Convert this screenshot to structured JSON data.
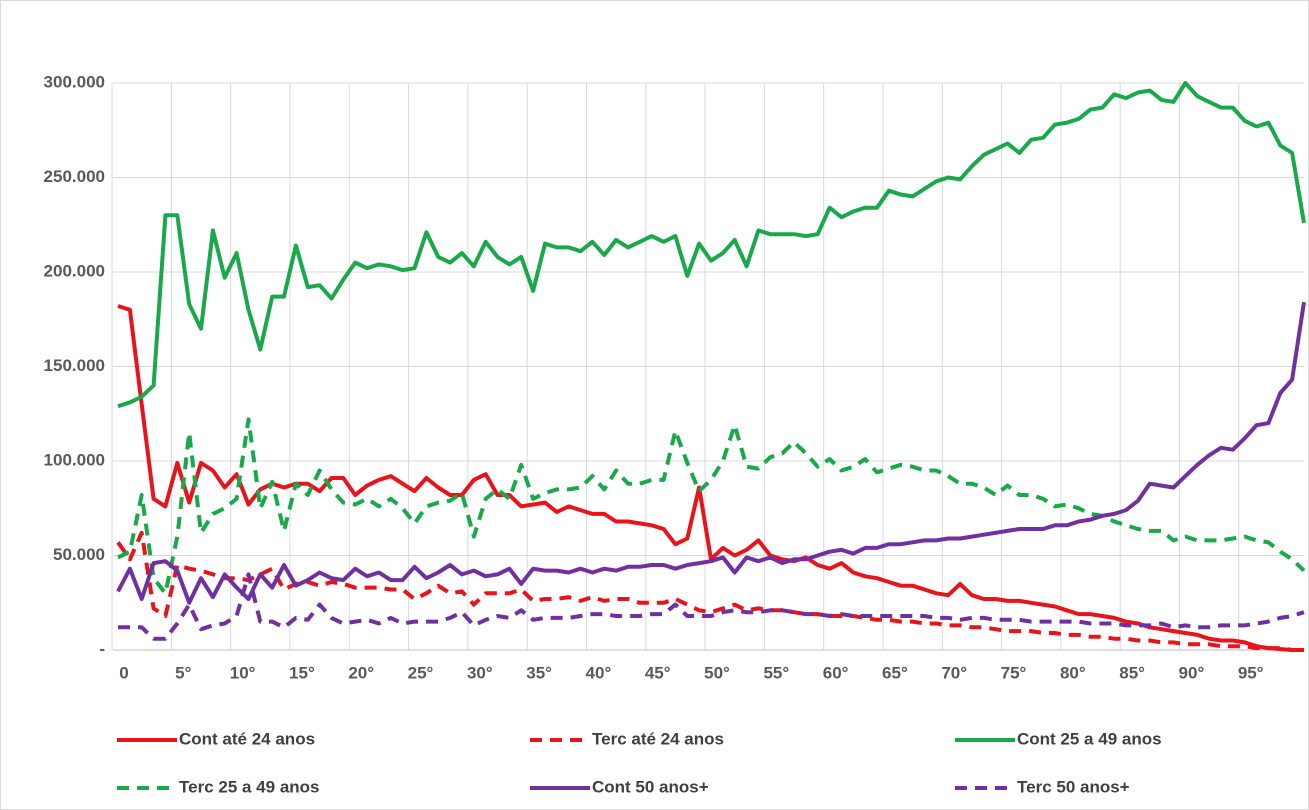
{
  "chart_data": {
    "type": "line",
    "categories": [
      "0",
      null,
      null,
      null,
      null,
      "5°",
      null,
      null,
      null,
      null,
      "10°",
      null,
      null,
      null,
      null,
      "15°",
      null,
      null,
      null,
      null,
      "20°",
      null,
      null,
      null,
      null,
      "25°",
      null,
      null,
      null,
      null,
      "30°",
      null,
      null,
      null,
      null,
      "35°",
      null,
      null,
      null,
      null,
      "40°",
      null,
      null,
      null,
      null,
      "45°",
      null,
      null,
      null,
      null,
      "50°",
      null,
      null,
      null,
      null,
      "55°",
      null,
      null,
      null,
      null,
      "60°",
      null,
      null,
      null,
      null,
      "65°",
      null,
      null,
      null,
      null,
      "70°",
      null,
      null,
      null,
      null,
      "75°",
      null,
      null,
      null,
      null,
      "80°",
      null,
      null,
      null,
      null,
      "85°",
      null,
      null,
      null,
      null,
      "90°",
      null,
      null,
      null,
      null,
      "95°",
      null,
      null,
      null,
      null,
      null
    ],
    "ylim": [
      0,
      300000
    ],
    "yticks": [
      {
        "value": 0,
        "label": "-"
      },
      {
        "value": 50000,
        "label": "50.000"
      },
      {
        "value": 100000,
        "label": "100.000"
      },
      {
        "value": 150000,
        "label": "150.000"
      },
      {
        "value": 200000,
        "label": "200.000"
      },
      {
        "value": 250000,
        "label": "250.000"
      },
      {
        "value": 300000,
        "label": "300.000"
      }
    ],
    "grid": true,
    "series": [
      {
        "name": "Cont até 24 anos",
        "color": "#e8141b",
        "line_style": "solid",
        "values": [
          182000,
          180000,
          130000,
          80000,
          76000,
          99000,
          78000,
          99000,
          95000,
          86000,
          93000,
          77000,
          85000,
          88000,
          86000,
          88000,
          88000,
          84000,
          91000,
          91000,
          82000,
          87000,
          90000,
          92000,
          88000,
          84000,
          91000,
          86000,
          82000,
          82000,
          90000,
          93000,
          82000,
          82000,
          76000,
          77000,
          78000,
          73000,
          76000,
          74000,
          72000,
          72000,
          68000,
          68000,
          67000,
          66000,
          64000,
          56000,
          59000,
          86000,
          48000,
          54000,
          50000,
          53000,
          58000,
          50000,
          48000,
          47000,
          49000,
          45000,
          43000,
          46000,
          41000,
          39000,
          38000,
          36000,
          34000,
          34000,
          32000,
          30000,
          29000,
          35000,
          29000,
          27000,
          27000,
          26000,
          26000,
          25000,
          24000,
          23000,
          21000,
          19000,
          19000,
          18000,
          17000,
          15000,
          14000,
          12000,
          11000,
          10000,
          9000,
          8000,
          6000,
          5000,
          5000,
          4000,
          2000,
          1000,
          500,
          0,
          0
        ]
      },
      {
        "name": "Terc até 24 anos",
        "color": "#e8141b",
        "line_style": "dashed",
        "values": [
          57000,
          48000,
          62000,
          22000,
          18000,
          45000,
          43000,
          42000,
          40000,
          38000,
          38000,
          37000,
          40000,
          43000,
          32000,
          35000,
          36000,
          34000,
          36000,
          35000,
          33000,
          33000,
          33000,
          32000,
          32000,
          27000,
          30000,
          34000,
          30000,
          31000,
          24000,
          30000,
          30000,
          30000,
          32000,
          26000,
          27000,
          27000,
          28000,
          26000,
          28000,
          26000,
          27000,
          27000,
          25000,
          25000,
          25000,
          27000,
          24000,
          21000,
          20000,
          22000,
          24000,
          21000,
          22000,
          21000,
          21000,
          20000,
          19000,
          19000,
          18000,
          18000,
          18000,
          17000,
          16000,
          16000,
          15000,
          15000,
          14000,
          14000,
          13000,
          13000,
          12000,
          12000,
          11000,
          10000,
          10000,
          10000,
          9000,
          9000,
          8000,
          8000,
          7000,
          7000,
          6000,
          6000,
          5000,
          5000,
          4000,
          4000,
          3000,
          3000,
          3000,
          2000,
          2000,
          2000,
          1000,
          1000,
          1000,
          0,
          0
        ]
      },
      {
        "name": "Cont 25 a 49 anos",
        "color": "#19a84a",
        "line_style": "solid",
        "values": [
          129000,
          131000,
          134000,
          140000,
          230000,
          230000,
          183000,
          170000,
          222000,
          197000,
          210000,
          180000,
          159000,
          187000,
          187000,
          214000,
          192000,
          193000,
          186000,
          196000,
          205000,
          202000,
          204000,
          203000,
          201000,
          202000,
          221000,
          208000,
          205000,
          210000,
          203000,
          216000,
          208000,
          204000,
          208000,
          190000,
          215000,
          213000,
          213000,
          211000,
          216000,
          209000,
          217000,
          213000,
          216000,
          219000,
          216000,
          219000,
          198000,
          215000,
          206000,
          210000,
          217000,
          203000,
          222000,
          220000,
          220000,
          220000,
          219000,
          220000,
          234000,
          229000,
          232000,
          234000,
          234000,
          243000,
          241000,
          240000,
          244000,
          248000,
          250000,
          249000,
          256000,
          262000,
          265000,
          268000,
          263000,
          270000,
          271000,
          278000,
          279000,
          281000,
          286000,
          287000,
          294000,
          292000,
          295000,
          296000,
          291000,
          290000,
          300000,
          293000,
          290000,
          287000,
          287000,
          280000,
          277000,
          279000,
          267000,
          263000,
          226000
        ]
      },
      {
        "name": "Terc 25 a 49 anos",
        "color": "#19a84a",
        "line_style": "dashed",
        "values": [
          49000,
          52000,
          82000,
          38000,
          30000,
          60000,
          115000,
          62000,
          72000,
          75000,
          80000,
          122000,
          75000,
          89000,
          63000,
          88000,
          82000,
          95000,
          85000,
          78000,
          77000,
          80000,
          76000,
          80000,
          75000,
          67000,
          76000,
          78000,
          79000,
          83000,
          60000,
          80000,
          85000,
          80000,
          98000,
          80000,
          83000,
          85000,
          85000,
          86000,
          92000,
          85000,
          95000,
          88000,
          88000,
          90000,
          90000,
          116000,
          99000,
          84000,
          90000,
          100000,
          119000,
          97000,
          96000,
          102000,
          104000,
          110000,
          104000,
          97000,
          101000,
          95000,
          97000,
          101000,
          94000,
          96000,
          98000,
          97000,
          95000,
          95000,
          92000,
          88000,
          88000,
          86000,
          82000,
          87000,
          82000,
          82000,
          80000,
          76000,
          77000,
          75000,
          72000,
          71000,
          68000,
          66000,
          64000,
          63000,
          63000,
          58000,
          60000,
          58000,
          58000,
          58000,
          59000,
          60000,
          58000,
          57000,
          52000,
          48000,
          42000
        ]
      },
      {
        "name": "Cont 50 anos+",
        "color": "#7030a0",
        "line_style": "solid",
        "values": [
          31000,
          43000,
          27000,
          46000,
          47000,
          42000,
          25000,
          38000,
          28000,
          40000,
          33000,
          27000,
          40000,
          33000,
          45000,
          34000,
          37000,
          41000,
          38000,
          37000,
          43000,
          39000,
          41000,
          37000,
          37000,
          44000,
          38000,
          41000,
          45000,
          40000,
          42000,
          39000,
          40000,
          43000,
          35000,
          43000,
          42000,
          42000,
          41000,
          43000,
          41000,
          43000,
          42000,
          44000,
          44000,
          45000,
          45000,
          43000,
          45000,
          46000,
          47000,
          49000,
          41000,
          49000,
          47000,
          49000,
          46000,
          48000,
          48000,
          50000,
          52000,
          53000,
          51000,
          54000,
          54000,
          56000,
          56000,
          57000,
          58000,
          58000,
          59000,
          59000,
          60000,
          61000,
          62000,
          63000,
          64000,
          64000,
          64000,
          66000,
          66000,
          68000,
          69000,
          71000,
          72000,
          74000,
          79000,
          88000,
          87000,
          86000,
          92000,
          98000,
          103000,
          107000,
          106000,
          112000,
          119000,
          120000,
          136000,
          143000,
          184000
        ]
      },
      {
        "name": "Terc 50 anos+",
        "color": "#7030a0",
        "line_style": "dashed",
        "values": [
          12000,
          12000,
          12000,
          6000,
          6000,
          14000,
          24000,
          11000,
          13000,
          14000,
          18000,
          40000,
          15000,
          15000,
          12000,
          17000,
          16000,
          24000,
          17000,
          14000,
          15000,
          16000,
          14000,
          17000,
          14000,
          15000,
          15000,
          15000,
          17000,
          20000,
          13000,
          16000,
          18000,
          17000,
          21000,
          16000,
          17000,
          17000,
          17000,
          18000,
          19000,
          19000,
          18000,
          18000,
          18000,
          19000,
          19000,
          24000,
          18000,
          18000,
          18000,
          20000,
          21000,
          20000,
          20000,
          21000,
          21000,
          20000,
          19000,
          19000,
          18000,
          19000,
          18000,
          18000,
          18000,
          18000,
          18000,
          18000,
          18000,
          17000,
          17000,
          16000,
          17000,
          17000,
          16000,
          16000,
          16000,
          15000,
          15000,
          15000,
          15000,
          15000,
          14000,
          14000,
          14000,
          13000,
          13000,
          13000,
          14000,
          12000,
          13000,
          12000,
          12000,
          13000,
          13000,
          13000,
          14000,
          15000,
          17000,
          18000,
          20000
        ]
      }
    ]
  }
}
